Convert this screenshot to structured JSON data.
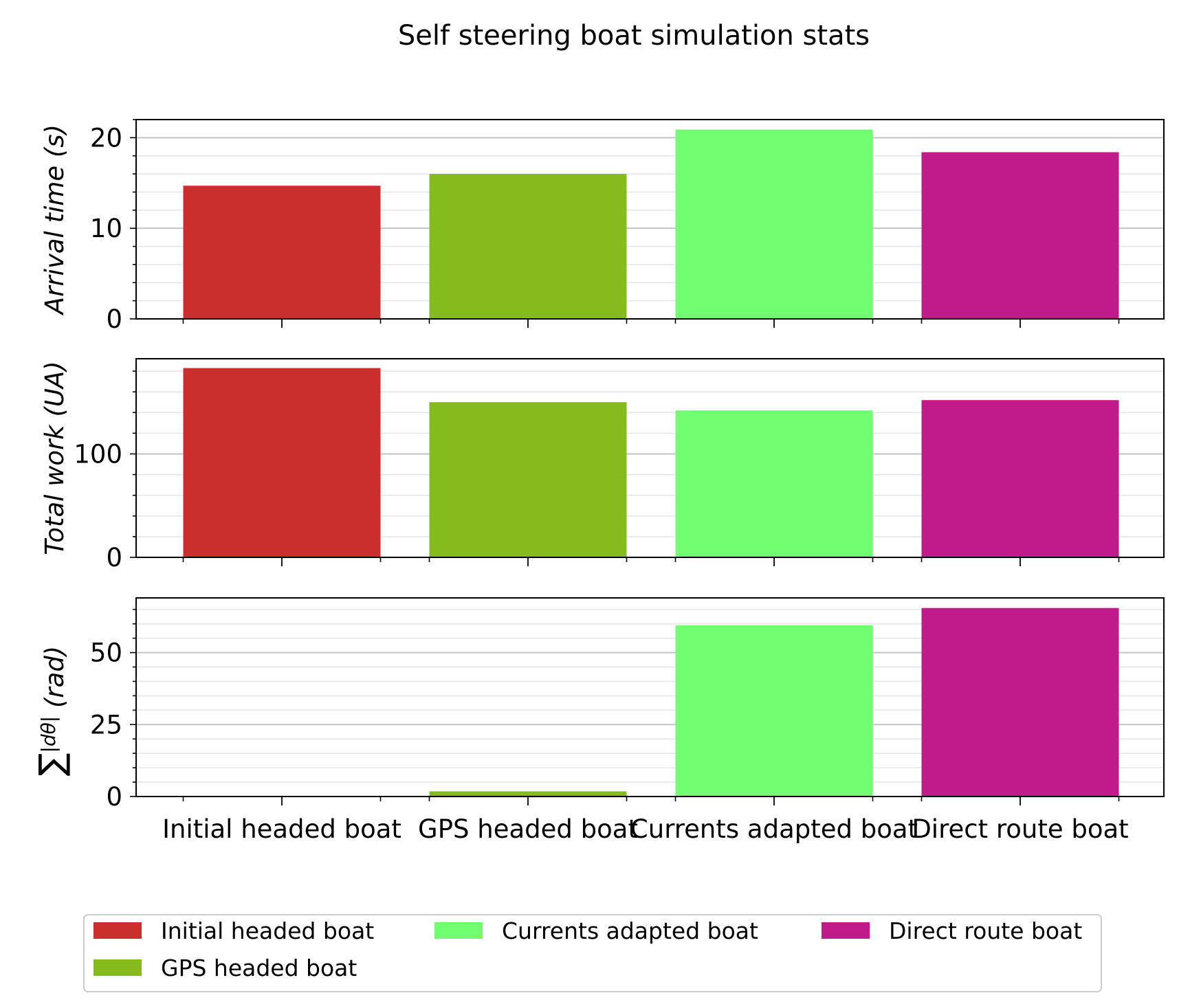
{
  "chart_data": {
    "type": "bar",
    "title": "Self steering boat simulation stats",
    "categories": [
      "Initial headed boat",
      "GPS headed boat",
      "Currents adapted boat",
      "Direct route boat"
    ],
    "colors": [
      "#cc2e2e",
      "#86bb1e",
      "#70fd70",
      "#c11b8b"
    ],
    "grid": true,
    "legend_position": "bottom",
    "legend_entries": [
      "Initial headed boat",
      "GPS headed boat",
      "Currents adapted boat",
      "Direct route boat"
    ],
    "panels": [
      {
        "ylabel": "Arrival time (s)",
        "ylim": [
          0,
          22
        ],
        "yticks": [
          0,
          10,
          20
        ],
        "values": [
          14.7,
          16.0,
          20.9,
          18.4
        ]
      },
      {
        "ylabel": "Total work (UA)",
        "ylim": [
          0,
          192
        ],
        "yticks": [
          0,
          100
        ],
        "values": [
          183,
          150,
          142,
          152
        ]
      },
      {
        "ylabel_symbol": "∑",
        "ylabel_sub": "|dθ|",
        "ylabel_unit": "(rad)",
        "ylim": [
          0,
          69
        ],
        "yticks": [
          0,
          25,
          50
        ],
        "values": [
          0,
          1.8,
          59.5,
          65.5
        ]
      }
    ]
  }
}
